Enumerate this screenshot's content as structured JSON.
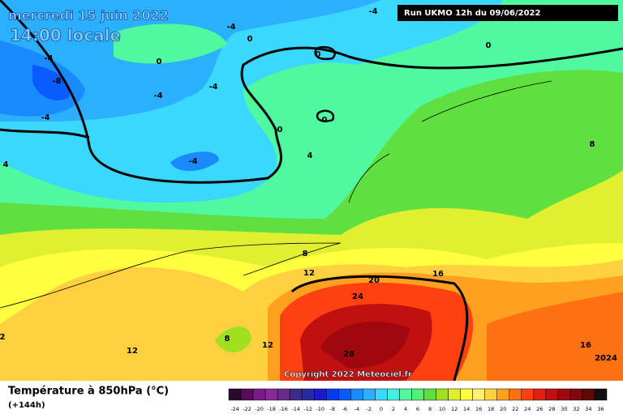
{
  "header": {
    "date": "mercredi 15 juin 2022",
    "time": "14:00 locale",
    "run": "Run UKMO 12h du 09/06/2022"
  },
  "map": {
    "copyright": "Copyright 2022 Meteociel.fr",
    "contour_labels": [
      "-4",
      "-4",
      "0",
      "0",
      "0",
      "0",
      "-4",
      "-8",
      "-4",
      "-4",
      "-4",
      "0",
      "0",
      "4",
      "-4",
      "4",
      "8",
      "8",
      "12",
      "20",
      "16",
      "24",
      "28",
      "8",
      "12",
      "12",
      "2",
      "16",
      "2024"
    ]
  },
  "legend": {
    "title": "Température à 850hPa (°C)",
    "lead": "(+144h)",
    "ticks": [
      -24,
      -22,
      -20,
      -18,
      -16,
      -14,
      -12,
      -10,
      -8,
      -6,
      -4,
      -2,
      0,
      2,
      4,
      6,
      8,
      10,
      12,
      14,
      16,
      18,
      20,
      22,
      24,
      26,
      28,
      30,
      32,
      34,
      36
    ],
    "colors": [
      "#2a0a2a",
      "#5a0a5a",
      "#7a1a8a",
      "#8a2a9a",
      "#6a2a8a",
      "#3a2a8a",
      "#2a2aa0",
      "#1a1acc",
      "#0a3aee",
      "#0a5aff",
      "#1a8aff",
      "#2ab0ff",
      "#3ad8ff",
      "#40f0e0",
      "#50f8a0",
      "#50f070",
      "#60e040",
      "#a0e020",
      "#e0f030",
      "#ffff40",
      "#fff070",
      "#ffd040",
      "#ffa020",
      "#ff7010",
      "#ff4010",
      "#e02010",
      "#c01010",
      "#a00810",
      "#800810",
      "#600808",
      "#101010"
    ]
  }
}
